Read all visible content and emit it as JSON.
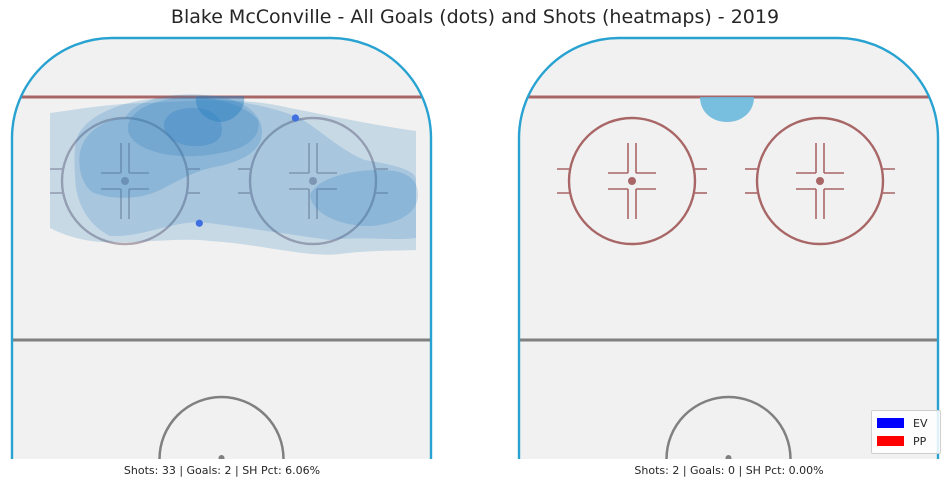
{
  "title": "Blake McConville - All Goals (dots) and Shots (heatmaps) - 2019",
  "colors": {
    "boards": "#27a2d1",
    "ice": "#f1f1f1",
    "goal_line": "#a86666",
    "circle": "#a86666",
    "center_line": "#808080",
    "ev": "#0000ff",
    "pp": "#ff0000",
    "heat": "#2a7fbf",
    "goal_dot": "#3f6fe0"
  },
  "legend": {
    "placement": "bottom-right",
    "items": [
      {
        "label": "EV",
        "color": "#0000ff"
      },
      {
        "label": "PP",
        "color": "#ff0000"
      }
    ]
  },
  "chart_data": [
    {
      "type": "heatmap",
      "panel": "left",
      "strength": "EV",
      "caption": "Shots: 33 | Goals: 2 | SH Pct: 6.06%",
      "shots": 33,
      "goals": 2,
      "sh_pct": "6.06%",
      "xlim": [
        -42.5,
        42.5
      ],
      "ylim": [
        0,
        100
      ],
      "goals_xy": [
        [
          15,
          81
        ],
        [
          -4.5,
          56
        ]
      ],
      "density_peaks": [
        [
          -5,
          86
        ],
        [
          -10,
          81
        ],
        [
          25,
          64
        ],
        [
          -22,
          69
        ],
        [
          28,
          68
        ]
      ]
    },
    {
      "type": "heatmap",
      "panel": "right",
      "strength": "PP",
      "caption": "Shots: 2 | Goals: 0 | SH Pct: 0.00%",
      "shots": 2,
      "goals": 0,
      "sh_pct": "0.00%",
      "xlim": [
        -42.5,
        42.5
      ],
      "ylim": [
        0,
        100
      ],
      "goals_xy": [],
      "density_peaks": [
        [
          0,
          89
        ]
      ]
    }
  ]
}
